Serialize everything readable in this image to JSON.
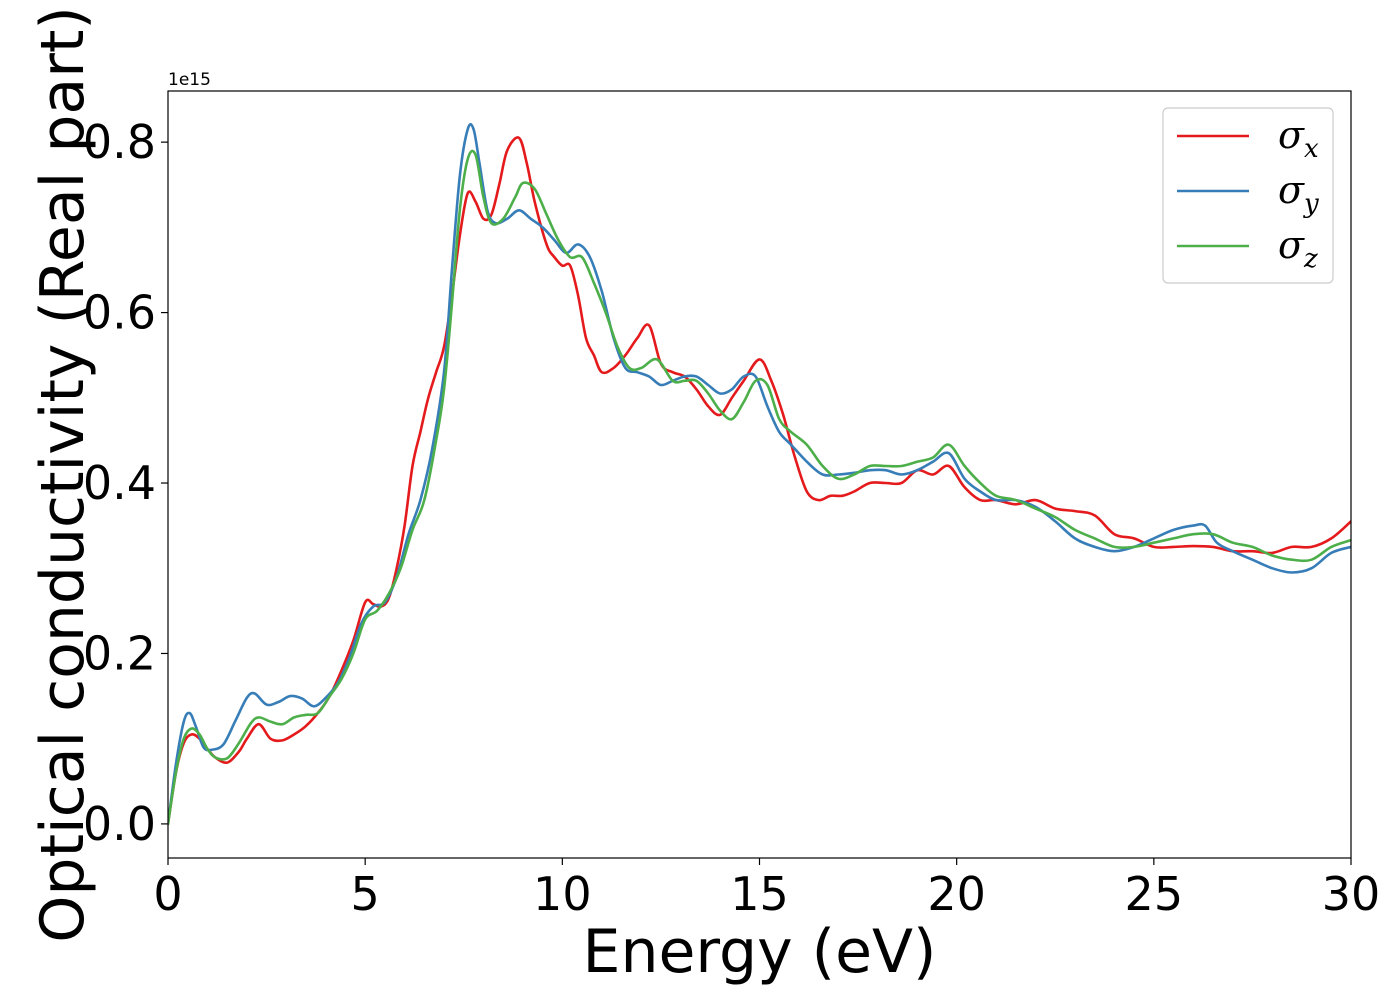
{
  "chart_data": {
    "type": "line",
    "title": "",
    "xlabel": "Energy (eV)",
    "ylabel": "Optical conductivity (Real part)",
    "y_offset_label": "1e15",
    "xlim": [
      0,
      30
    ],
    "ylim": [
      -0.04,
      0.86
    ],
    "xticks": [
      0,
      5,
      10,
      15,
      20,
      25,
      30
    ],
    "xtick_labels": [
      "0",
      "5",
      "10",
      "15",
      "20",
      "25",
      "30"
    ],
    "yticks": [
      0.0,
      0.2,
      0.4,
      0.6,
      0.8
    ],
    "ytick_labels": [
      "0.0",
      "0.2",
      "0.4",
      "0.6",
      "0.8"
    ],
    "grid": false,
    "legend_position": "top-right",
    "series": [
      {
        "name": "σx",
        "label_main": "σ",
        "label_sub": "x",
        "color": "#e41a1c",
        "x": [
          0,
          0.2,
          0.4,
          0.6,
          0.8,
          1.0,
          1.2,
          1.5,
          1.8,
          2.0,
          2.3,
          2.6,
          2.9,
          3.2,
          3.5,
          3.8,
          4.1,
          4.4,
          4.7,
          5.0,
          5.2,
          5.4,
          5.6,
          5.8,
          6.0,
          6.2,
          6.4,
          6.6,
          6.8,
          7.0,
          7.2,
          7.4,
          7.6,
          7.8,
          8.0,
          8.2,
          8.4,
          8.6,
          8.9,
          9.1,
          9.3,
          9.6,
          9.8,
          10.0,
          10.2,
          10.4,
          10.6,
          10.8,
          11.0,
          11.3,
          11.6,
          11.9,
          12.2,
          12.5,
          12.8,
          13.1,
          13.4,
          13.7,
          14.0,
          14.3,
          14.6,
          15.0,
          15.3,
          15.6,
          15.9,
          16.2,
          16.5,
          16.8,
          17.1,
          17.4,
          17.8,
          18.2,
          18.6,
          19.0,
          19.4,
          19.8,
          20.2,
          20.6,
          21.0,
          21.5,
          22.0,
          22.5,
          23.0,
          23.5,
          24.0,
          24.5,
          25.0,
          25.5,
          26.0,
          26.5,
          27.0,
          27.5,
          28.0,
          28.5,
          29.0,
          29.5,
          30.0
        ],
        "y": [
          0.0,
          0.06,
          0.095,
          0.105,
          0.1,
          0.088,
          0.078,
          0.072,
          0.085,
          0.1,
          0.117,
          0.1,
          0.098,
          0.105,
          0.115,
          0.13,
          0.15,
          0.18,
          0.215,
          0.26,
          0.258,
          0.255,
          0.265,
          0.3,
          0.35,
          0.42,
          0.46,
          0.5,
          0.53,
          0.56,
          0.62,
          0.69,
          0.74,
          0.73,
          0.71,
          0.715,
          0.75,
          0.79,
          0.805,
          0.775,
          0.73,
          0.68,
          0.665,
          0.655,
          0.655,
          0.62,
          0.57,
          0.55,
          0.53,
          0.535,
          0.55,
          0.57,
          0.585,
          0.54,
          0.53,
          0.525,
          0.51,
          0.49,
          0.48,
          0.5,
          0.52,
          0.545,
          0.52,
          0.48,
          0.43,
          0.39,
          0.38,
          0.385,
          0.385,
          0.39,
          0.4,
          0.4,
          0.4,
          0.415,
          0.41,
          0.42,
          0.395,
          0.38,
          0.38,
          0.375,
          0.38,
          0.37,
          0.367,
          0.362,
          0.34,
          0.335,
          0.325,
          0.325,
          0.326,
          0.325,
          0.32,
          0.32,
          0.318,
          0.325,
          0.325,
          0.335,
          0.355
        ]
      },
      {
        "name": "σy",
        "label_main": "σ",
        "label_sub": "y",
        "color": "#377eb8",
        "x": [
          0,
          0.2,
          0.4,
          0.55,
          0.7,
          0.9,
          1.1,
          1.4,
          1.7,
          2.0,
          2.2,
          2.5,
          2.8,
          3.1,
          3.4,
          3.7,
          4.0,
          4.3,
          4.6,
          4.9,
          5.2,
          5.5,
          5.8,
          6.1,
          6.4,
          6.7,
          7.0,
          7.2,
          7.4,
          7.6,
          7.75,
          7.9,
          8.1,
          8.3,
          8.6,
          8.9,
          9.2,
          9.5,
          9.8,
          10.1,
          10.4,
          10.7,
          11.0,
          11.3,
          11.6,
          11.9,
          12.2,
          12.5,
          12.8,
          13.1,
          13.4,
          13.7,
          14.0,
          14.3,
          14.6,
          14.9,
          15.2,
          15.5,
          15.8,
          16.2,
          16.6,
          17.0,
          17.4,
          17.8,
          18.2,
          18.6,
          19.0,
          19.4,
          19.8,
          20.2,
          20.6,
          21.0,
          21.5,
          22.0,
          22.5,
          23.0,
          23.5,
          24.0,
          24.5,
          25.0,
          25.5,
          26.0,
          26.3,
          26.6,
          27.0,
          27.5,
          28.0,
          28.5,
          29.0,
          29.5,
          30.0
        ],
        "y": [
          0.0,
          0.07,
          0.12,
          0.13,
          0.115,
          0.09,
          0.087,
          0.093,
          0.12,
          0.148,
          0.153,
          0.14,
          0.143,
          0.15,
          0.147,
          0.138,
          0.148,
          0.165,
          0.195,
          0.235,
          0.255,
          0.26,
          0.29,
          0.34,
          0.38,
          0.44,
          0.53,
          0.65,
          0.76,
          0.815,
          0.815,
          0.775,
          0.72,
          0.705,
          0.71,
          0.72,
          0.71,
          0.7,
          0.685,
          0.67,
          0.68,
          0.665,
          0.625,
          0.57,
          0.535,
          0.53,
          0.525,
          0.515,
          0.52,
          0.525,
          0.525,
          0.515,
          0.505,
          0.51,
          0.525,
          0.525,
          0.49,
          0.46,
          0.445,
          0.425,
          0.41,
          0.41,
          0.412,
          0.415,
          0.415,
          0.41,
          0.415,
          0.425,
          0.435,
          0.405,
          0.39,
          0.38,
          0.38,
          0.372,
          0.355,
          0.335,
          0.325,
          0.32,
          0.325,
          0.335,
          0.345,
          0.35,
          0.35,
          0.33,
          0.32,
          0.31,
          0.3,
          0.295,
          0.3,
          0.318,
          0.325
        ]
      },
      {
        "name": "σz",
        "label_main": "σ",
        "label_sub": "z",
        "color": "#4daf4a",
        "x": [
          0,
          0.2,
          0.4,
          0.6,
          0.8,
          1.0,
          1.2,
          1.5,
          1.8,
          2.1,
          2.3,
          2.6,
          2.9,
          3.2,
          3.5,
          3.8,
          4.1,
          4.4,
          4.7,
          5.0,
          5.3,
          5.6,
          5.9,
          6.2,
          6.5,
          6.8,
          7.0,
          7.2,
          7.4,
          7.6,
          7.8,
          8.0,
          8.2,
          8.5,
          8.8,
          9.0,
          9.3,
          9.6,
          9.9,
          10.2,
          10.5,
          10.8,
          11.1,
          11.4,
          11.7,
          12.0,
          12.4,
          12.8,
          13.1,
          13.4,
          13.7,
          14.0,
          14.3,
          14.6,
          14.9,
          15.2,
          15.5,
          15.8,
          16.2,
          16.6,
          17.0,
          17.4,
          17.8,
          18.2,
          18.6,
          19.0,
          19.4,
          19.8,
          20.2,
          20.6,
          21.0,
          21.5,
          22.0,
          22.5,
          23.0,
          23.5,
          24.0,
          24.5,
          25.0,
          25.5,
          26.0,
          26.5,
          27.0,
          27.5,
          28.0,
          28.5,
          29.0,
          29.5,
          30.0
        ],
        "y": [
          0.0,
          0.06,
          0.1,
          0.112,
          0.105,
          0.088,
          0.078,
          0.077,
          0.095,
          0.118,
          0.125,
          0.12,
          0.117,
          0.125,
          0.128,
          0.13,
          0.15,
          0.17,
          0.2,
          0.24,
          0.25,
          0.27,
          0.3,
          0.345,
          0.38,
          0.45,
          0.51,
          0.61,
          0.72,
          0.78,
          0.785,
          0.735,
          0.705,
          0.71,
          0.735,
          0.752,
          0.745,
          0.715,
          0.685,
          0.665,
          0.665,
          0.635,
          0.6,
          0.56,
          0.535,
          0.535,
          0.545,
          0.52,
          0.52,
          0.52,
          0.505,
          0.485,
          0.475,
          0.495,
          0.52,
          0.515,
          0.475,
          0.46,
          0.445,
          0.42,
          0.405,
          0.41,
          0.42,
          0.42,
          0.42,
          0.425,
          0.43,
          0.445,
          0.42,
          0.4,
          0.385,
          0.38,
          0.37,
          0.36,
          0.345,
          0.335,
          0.325,
          0.325,
          0.33,
          0.335,
          0.34,
          0.34,
          0.33,
          0.325,
          0.315,
          0.31,
          0.31,
          0.325,
          0.333
        ]
      }
    ]
  }
}
